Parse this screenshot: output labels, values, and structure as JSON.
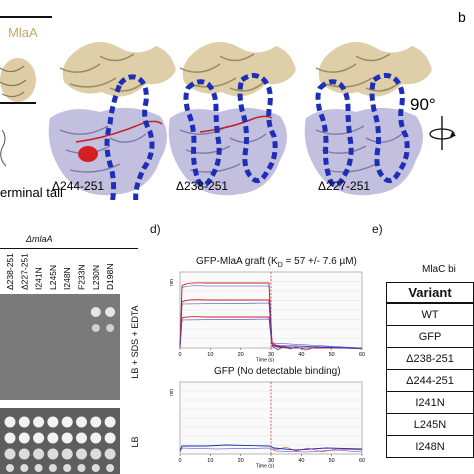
{
  "top": {
    "mlaa_label": "MlaA",
    "terminal_tail_label": "erminal tail",
    "constructs": [
      "Δ244-251",
      "Δ238-251",
      "Δ227-251"
    ],
    "panel_b_label": "b",
    "rotation_label": "90°"
  },
  "panel_c": {
    "genotype": "ΔmlaA",
    "strains": [
      "Δ238-251",
      "Δ227-251",
      "I241N",
      "L245N",
      "I248N",
      "F233N",
      "L230N",
      "D198N"
    ],
    "plate_top_label": "LB + SDS + EDTA",
    "plate_bottom_label": "LB"
  },
  "panel_d": {
    "label": "d)",
    "top_title": "GFP-MlaA graft (K",
    "top_title_sub": "D",
    "top_title_rest": " = 57 +/- 7.6 µM)",
    "bottom_title": "GFP (No detectable binding)",
    "x_ticks": [
      "0",
      "10",
      "20",
      "30",
      "40",
      "50",
      "60"
    ],
    "x_label": "Time (s)",
    "y_label": "nm"
  },
  "panel_e": {
    "label": "e)",
    "caption": "MlaC bi",
    "header": "Variant",
    "rows": [
      "WT",
      "GFP",
      "Δ238-251",
      "Δ244-251",
      "I241N",
      "L245N",
      "I248N"
    ]
  },
  "colors": {
    "mlaa_tan": "#d9c79a",
    "mlac_lavender": "#b8b4d8",
    "outline_blue": "#1d2fb8",
    "tail_red": "#d42020",
    "plate_gray": "#7a7a7a"
  }
}
